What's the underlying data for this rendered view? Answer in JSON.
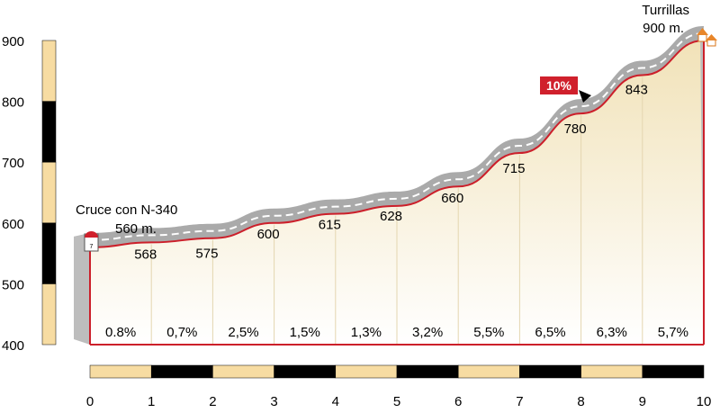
{
  "chart_data": {
    "type": "area",
    "x": [
      0,
      1,
      2,
      3,
      4,
      5,
      6,
      7,
      8,
      9,
      10
    ],
    "altitudes": [
      560,
      568,
      575,
      600,
      615,
      628,
      660,
      715,
      780,
      843,
      900
    ],
    "altitude_labels": [
      "568",
      "575",
      "600",
      "615",
      "628",
      "660",
      "715",
      "780",
      "843"
    ],
    "gradients": [
      "0.8%",
      "0,7%",
      "2,5%",
      "1,5%",
      "1,3%",
      "3,2%",
      "5,5%",
      "6,5%",
      "6,3%",
      "5,7%"
    ],
    "x_tick_labels": [
      "0",
      "1",
      "2",
      "3",
      "4",
      "5",
      "6",
      "7",
      "8",
      "9",
      "10"
    ],
    "y_tick_labels": [
      "900",
      "800",
      "700",
      "600",
      "500",
      "400"
    ],
    "y_ticks": [
      900,
      800,
      700,
      600,
      500,
      400
    ],
    "ylim": [
      400,
      900
    ],
    "xlim": [
      0,
      10
    ],
    "start_label": {
      "name": "Cruce con N-340",
      "altitude": "560 m."
    },
    "end_label": {
      "name": "Turrillas",
      "altitude": "900 m."
    },
    "max_gradient": {
      "label": "10%",
      "km": 8
    },
    "colors": {
      "profile_line": "#cc1f2a",
      "road": "#aaaaaa",
      "fill_top": "#f1e2b8",
      "fill_bottom": "#ffffff",
      "bar_light": "#f7dca2",
      "bar_dark": "#000000",
      "badge": "#d0202c"
    }
  }
}
